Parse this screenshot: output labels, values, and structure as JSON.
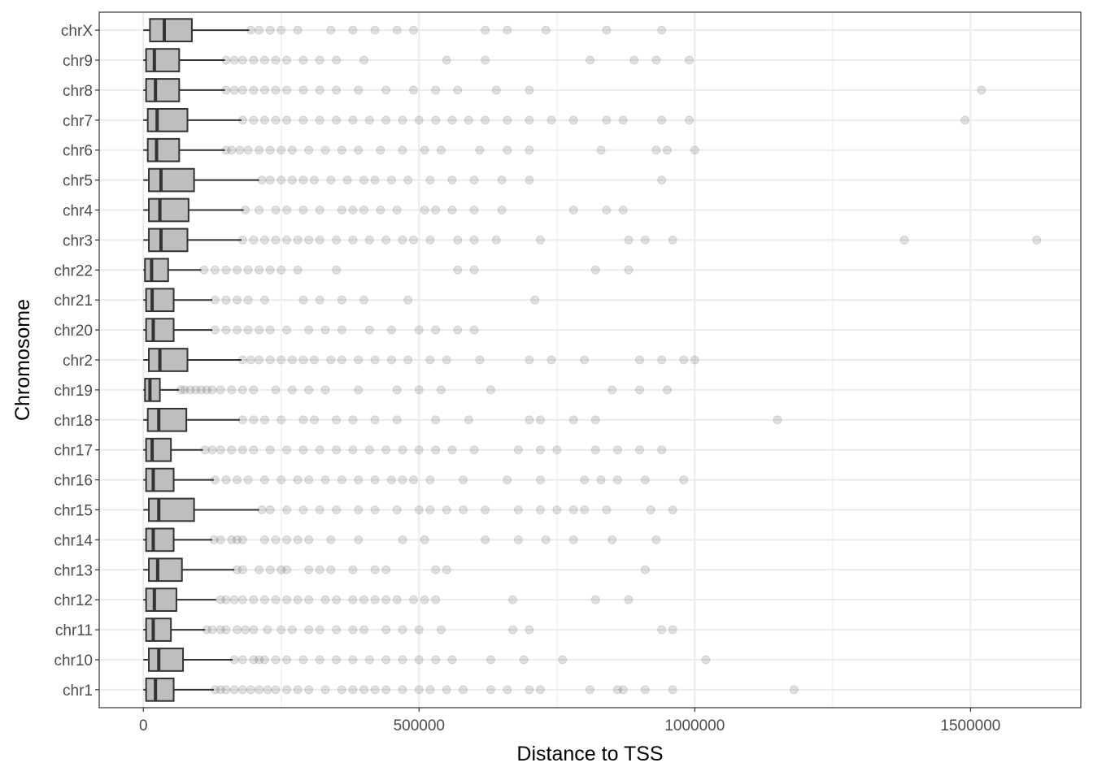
{
  "chart_data": {
    "type": "boxplot",
    "orientation": "horizontal",
    "title": "",
    "xlabel": "Distance to TSS",
    "ylabel": "Chromosome",
    "xlim": [
      -80000,
      1700000
    ],
    "x_ticks": [
      0,
      500000,
      1000000,
      1500000
    ],
    "x_tick_labels": [
      "0",
      "500000",
      "1000000",
      "1500000"
    ],
    "grid": true,
    "legend": "none",
    "colors": {
      "box_fill": "#bebebe",
      "box_stroke": "#333333",
      "outlier": "#333333",
      "grid": "#ebebeb",
      "panel_border": "#333333"
    },
    "categories": [
      "chr1",
      "chr10",
      "chr11",
      "chr12",
      "chr13",
      "chr14",
      "chr15",
      "chr16",
      "chr17",
      "chr18",
      "chr19",
      "chr2",
      "chr20",
      "chr21",
      "chr22",
      "chr3",
      "chr4",
      "chr5",
      "chr6",
      "chr7",
      "chr8",
      "chr9",
      "chrX"
    ],
    "boxes": [
      {
        "category": "chr1",
        "q1": 5000,
        "median": 22000,
        "q3": 55000,
        "whisker_low": 0,
        "whisker_high": 128000,
        "outliers": [
          130000,
          140000,
          150000,
          165000,
          180000,
          195000,
          210000,
          225000,
          240000,
          260000,
          280000,
          300000,
          330000,
          360000,
          380000,
          400000,
          420000,
          440000,
          470000,
          500000,
          520000,
          550000,
          580000,
          630000,
          660000,
          700000,
          720000,
          810000,
          860000,
          870000,
          910000,
          960000,
          1180000
        ]
      },
      {
        "category": "chr10",
        "q1": 10000,
        "median": 28000,
        "q3": 72000,
        "whisker_low": 0,
        "whisker_high": 162000,
        "outliers": [
          165000,
          180000,
          200000,
          210000,
          220000,
          240000,
          260000,
          290000,
          320000,
          350000,
          380000,
          410000,
          440000,
          470000,
          500000,
          530000,
          560000,
          630000,
          690000,
          760000,
          1020000
        ]
      },
      {
        "category": "chr11",
        "q1": 5000,
        "median": 18000,
        "q3": 50000,
        "whisker_low": 0,
        "whisker_high": 112000,
        "outliers": [
          115000,
          125000,
          140000,
          150000,
          170000,
          185000,
          200000,
          225000,
          250000,
          270000,
          300000,
          320000,
          350000,
          380000,
          400000,
          440000,
          470000,
          500000,
          540000,
          670000,
          700000,
          940000,
          960000
        ]
      },
      {
        "category": "chr12",
        "q1": 5000,
        "median": 20000,
        "q3": 60000,
        "whisker_low": 0,
        "whisker_high": 132000,
        "outliers": [
          140000,
          150000,
          165000,
          180000,
          200000,
          220000,
          240000,
          260000,
          280000,
          300000,
          330000,
          350000,
          380000,
          400000,
          420000,
          440000,
          460000,
          490000,
          510000,
          530000,
          670000,
          820000,
          880000
        ]
      },
      {
        "category": "chr13",
        "q1": 10000,
        "median": 26000,
        "q3": 70000,
        "whisker_low": 0,
        "whisker_high": 165000,
        "outliers": [
          170000,
          180000,
          210000,
          230000,
          250000,
          260000,
          300000,
          320000,
          340000,
          380000,
          420000,
          440000,
          530000,
          550000,
          910000
        ]
      },
      {
        "category": "chr14",
        "q1": 5000,
        "median": 18000,
        "q3": 55000,
        "whisker_low": 0,
        "whisker_high": 125000,
        "outliers": [
          128000,
          140000,
          160000,
          170000,
          180000,
          220000,
          240000,
          260000,
          280000,
          300000,
          340000,
          390000,
          470000,
          510000,
          620000,
          680000,
          730000,
          780000,
          850000,
          930000
        ]
      },
      {
        "category": "chr15",
        "q1": 10000,
        "median": 28000,
        "q3": 92000,
        "whisker_low": 0,
        "whisker_high": 210000,
        "outliers": [
          215000,
          230000,
          260000,
          290000,
          320000,
          350000,
          390000,
          420000,
          460000,
          500000,
          520000,
          550000,
          580000,
          620000,
          680000,
          720000,
          750000,
          780000,
          800000,
          840000,
          920000,
          960000
        ]
      },
      {
        "category": "chr16",
        "q1": 5000,
        "median": 18000,
        "q3": 55000,
        "whisker_low": 0,
        "whisker_high": 128000,
        "outliers": [
          130000,
          150000,
          170000,
          190000,
          220000,
          250000,
          280000,
          300000,
          330000,
          360000,
          390000,
          420000,
          450000,
          470000,
          490000,
          520000,
          580000,
          660000,
          720000,
          800000,
          830000,
          860000,
          910000,
          980000
        ]
      },
      {
        "category": "chr17",
        "q1": 5000,
        "median": 16000,
        "q3": 50000,
        "whisker_low": 0,
        "whisker_high": 108000,
        "outliers": [
          112000,
          125000,
          140000,
          160000,
          180000,
          200000,
          230000,
          260000,
          290000,
          320000,
          350000,
          380000,
          410000,
          440000,
          470000,
          500000,
          530000,
          560000,
          600000,
          680000,
          720000,
          750000,
          820000,
          860000,
          900000,
          940000
        ]
      },
      {
        "category": "chr18",
        "q1": 8000,
        "median": 28000,
        "q3": 78000,
        "whisker_low": 0,
        "whisker_high": 175000,
        "outliers": [
          180000,
          200000,
          220000,
          250000,
          290000,
          310000,
          350000,
          380000,
          420000,
          460000,
          530000,
          590000,
          700000,
          720000,
          780000,
          820000,
          1150000
        ]
      },
      {
        "category": "chr19",
        "q1": 3000,
        "median": 12000,
        "q3": 30000,
        "whisker_low": 0,
        "whisker_high": 65000,
        "outliers": [
          68000,
          75000,
          85000,
          95000,
          105000,
          115000,
          125000,
          140000,
          160000,
          180000,
          200000,
          240000,
          270000,
          300000,
          330000,
          390000,
          460000,
          500000,
          540000,
          630000,
          850000,
          900000,
          950000
        ]
      },
      {
        "category": "chr2",
        "q1": 10000,
        "median": 30000,
        "q3": 80000,
        "whisker_low": 0,
        "whisker_high": 178000,
        "outliers": [
          180000,
          195000,
          210000,
          230000,
          250000,
          270000,
          290000,
          310000,
          340000,
          360000,
          390000,
          420000,
          450000,
          480000,
          520000,
          550000,
          610000,
          700000,
          740000,
          800000,
          900000,
          940000,
          980000,
          1000000
        ]
      },
      {
        "category": "chr20",
        "q1": 5000,
        "median": 18000,
        "q3": 55000,
        "whisker_low": 0,
        "whisker_high": 125000,
        "outliers": [
          130000,
          150000,
          170000,
          190000,
          210000,
          230000,
          260000,
          300000,
          330000,
          360000,
          410000,
          450000,
          500000,
          530000,
          570000,
          600000
        ]
      },
      {
        "category": "chr21",
        "q1": 5000,
        "median": 16000,
        "q3": 55000,
        "whisker_low": 0,
        "whisker_high": 125000,
        "outliers": [
          130000,
          150000,
          170000,
          190000,
          220000,
          290000,
          320000,
          360000,
          400000,
          480000,
          710000
        ]
      },
      {
        "category": "chr22",
        "q1": 3000,
        "median": 15000,
        "q3": 45000,
        "whisker_low": 0,
        "whisker_high": 105000,
        "outliers": [
          110000,
          130000,
          150000,
          170000,
          190000,
          210000,
          230000,
          250000,
          280000,
          350000,
          570000,
          600000,
          820000,
          880000
        ]
      },
      {
        "category": "chr3",
        "q1": 10000,
        "median": 32000,
        "q3": 80000,
        "whisker_low": 0,
        "whisker_high": 178000,
        "outliers": [
          180000,
          200000,
          220000,
          240000,
          260000,
          280000,
          300000,
          320000,
          350000,
          380000,
          410000,
          440000,
          470000,
          490000,
          520000,
          570000,
          600000,
          640000,
          720000,
          880000,
          910000,
          960000,
          1380000,
          1620000
        ]
      },
      {
        "category": "chr4",
        "q1": 10000,
        "median": 30000,
        "q3": 82000,
        "whisker_low": 0,
        "whisker_high": 182000,
        "outliers": [
          185000,
          210000,
          240000,
          260000,
          290000,
          320000,
          360000,
          380000,
          400000,
          430000,
          460000,
          510000,
          530000,
          560000,
          600000,
          650000,
          780000,
          840000,
          870000
        ]
      },
      {
        "category": "chr5",
        "q1": 10000,
        "median": 32000,
        "q3": 92000,
        "whisker_low": 0,
        "whisker_high": 210000,
        "outliers": [
          215000,
          230000,
          250000,
          270000,
          290000,
          310000,
          340000,
          370000,
          400000,
          420000,
          450000,
          480000,
          520000,
          560000,
          600000,
          650000,
          700000,
          940000
        ]
      },
      {
        "category": "chr6",
        "q1": 8000,
        "median": 24000,
        "q3": 65000,
        "whisker_low": 0,
        "whisker_high": 148000,
        "outliers": [
          150000,
          160000,
          175000,
          190000,
          210000,
          230000,
          250000,
          270000,
          300000,
          330000,
          360000,
          390000,
          430000,
          470000,
          510000,
          540000,
          610000,
          660000,
          700000,
          830000,
          930000,
          950000,
          1000000
        ]
      },
      {
        "category": "chr7",
        "q1": 8000,
        "median": 25000,
        "q3": 80000,
        "whisker_low": 0,
        "whisker_high": 178000,
        "outliers": [
          180000,
          200000,
          220000,
          240000,
          260000,
          290000,
          320000,
          350000,
          380000,
          410000,
          440000,
          470000,
          500000,
          530000,
          560000,
          590000,
          620000,
          660000,
          700000,
          740000,
          780000,
          840000,
          870000,
          940000,
          990000,
          1490000
        ]
      },
      {
        "category": "chr8",
        "q1": 5000,
        "median": 22000,
        "q3": 65000,
        "whisker_low": 0,
        "whisker_high": 148000,
        "outliers": [
          150000,
          165000,
          180000,
          200000,
          220000,
          240000,
          260000,
          290000,
          320000,
          350000,
          390000,
          440000,
          490000,
          530000,
          570000,
          640000,
          700000,
          1520000
        ]
      },
      {
        "category": "chr9",
        "q1": 5000,
        "median": 20000,
        "q3": 65000,
        "whisker_low": 0,
        "whisker_high": 148000,
        "outliers": [
          150000,
          165000,
          180000,
          200000,
          220000,
          240000,
          260000,
          290000,
          320000,
          350000,
          400000,
          550000,
          620000,
          810000,
          890000,
          930000,
          990000
        ]
      },
      {
        "category": "chrX",
        "q1": 12000,
        "median": 38000,
        "q3": 88000,
        "whisker_low": 0,
        "whisker_high": 192000,
        "outliers": [
          195000,
          210000,
          230000,
          250000,
          280000,
          340000,
          380000,
          420000,
          460000,
          490000,
          620000,
          660000,
          730000,
          840000,
          940000
        ]
      }
    ]
  }
}
